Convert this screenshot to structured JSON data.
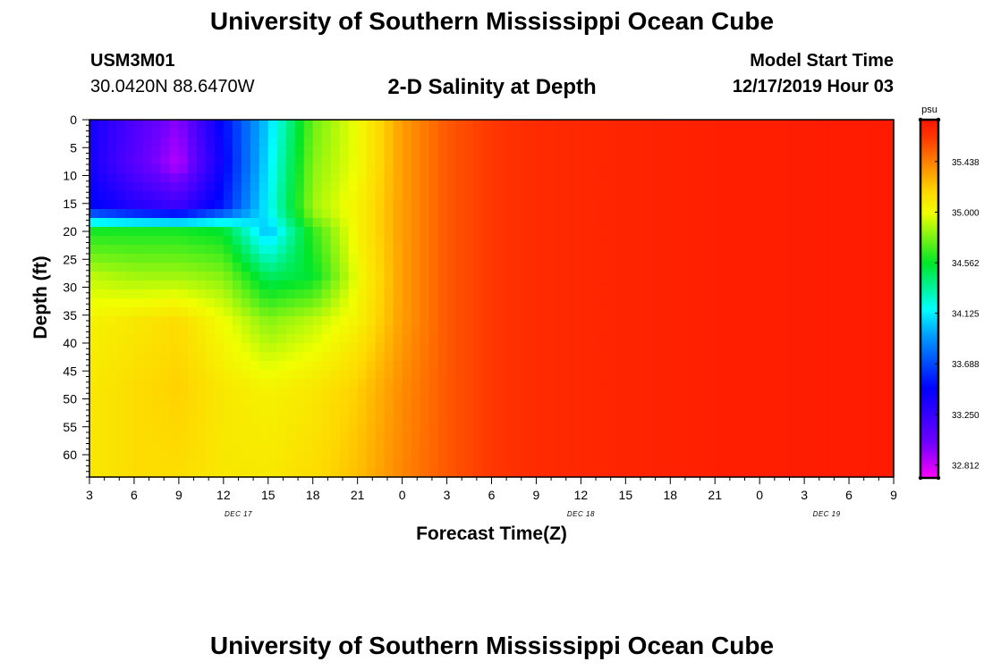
{
  "header": {
    "title_top": "University of Southern Mississippi Ocean Cube",
    "title_bottom": "University of Southern Mississippi Ocean Cube",
    "station_id": "USM3M01",
    "station_coords": "30.0420N 88.6470W",
    "plot_title": "2-D Salinity at Depth",
    "start_label": "Model Start Time",
    "start_value": "12/17/2019 Hour 03"
  },
  "chart_data": {
    "type": "heatmap",
    "title": "2-D Salinity at Depth",
    "xlabel": "Forecast Time(Z)",
    "ylabel": "Depth (ft)",
    "x_tick_labels": [
      "3",
      "6",
      "9",
      "12",
      "15",
      "18",
      "21",
      "0",
      "3",
      "6",
      "9",
      "12",
      "15",
      "18",
      "21",
      "0",
      "3",
      "6",
      "9"
    ],
    "x_tick_hours": [
      0,
      3,
      6,
      9,
      12,
      15,
      18,
      21,
      24,
      27,
      30,
      33,
      36,
      39,
      42,
      45,
      48,
      51,
      54
    ],
    "x_range_hours": [
      0,
      54
    ],
    "date_labels": [
      {
        "text": "DEC 17",
        "hour": 10
      },
      {
        "text": "DEC 18",
        "hour": 33
      },
      {
        "text": "DEC 19",
        "hour": 49.5
      }
    ],
    "y_ticks": [
      0,
      5,
      10,
      15,
      20,
      25,
      30,
      35,
      40,
      45,
      50,
      55,
      60
    ],
    "ylim": [
      0,
      64
    ],
    "y_inverted": true,
    "colorbar": {
      "unit": "psu",
      "ticks": [
        "35.438",
        "35.000",
        "34.562",
        "34.125",
        "33.688",
        "33.250",
        "32.812"
      ],
      "tick_values": [
        35.438,
        35.0,
        34.562,
        34.125,
        33.688,
        33.25,
        32.812
      ],
      "range": [
        32.7,
        35.8
      ]
    },
    "grid_hours": [
      0,
      3,
      6,
      9,
      12,
      15,
      18,
      21,
      24,
      27,
      30,
      36,
      42,
      48,
      54
    ],
    "grid_depths": [
      0,
      8,
      16,
      20,
      28,
      36,
      48,
      64
    ],
    "grid_values": [
      [
        33.4,
        33.15,
        32.95,
        33.5,
        34.05,
        34.75,
        35.0,
        35.35,
        35.55,
        35.65,
        35.7,
        35.73,
        35.75,
        35.76,
        35.77
      ],
      [
        33.4,
        33.1,
        32.85,
        33.45,
        34.1,
        34.8,
        35.0,
        35.35,
        35.55,
        35.65,
        35.7,
        35.73,
        35.75,
        35.76,
        35.77
      ],
      [
        33.5,
        33.35,
        33.25,
        33.55,
        34.15,
        34.85,
        35.05,
        35.35,
        35.55,
        35.65,
        35.7,
        35.73,
        35.75,
        35.76,
        35.77
      ],
      [
        34.6,
        34.6,
        34.6,
        34.55,
        34.0,
        34.65,
        35.05,
        35.35,
        35.55,
        35.65,
        35.7,
        35.73,
        35.75,
        35.76,
        35.77
      ],
      [
        34.9,
        34.85,
        34.85,
        34.8,
        34.45,
        34.55,
        35.0,
        35.35,
        35.55,
        35.65,
        35.7,
        35.73,
        35.75,
        35.76,
        35.77
      ],
      [
        35.05,
        35.1,
        35.15,
        35.0,
        34.8,
        34.9,
        35.05,
        35.35,
        35.55,
        35.65,
        35.7,
        35.73,
        35.75,
        35.76,
        35.77
      ],
      [
        35.1,
        35.15,
        35.2,
        35.1,
        35.05,
        35.1,
        35.2,
        35.4,
        35.55,
        35.65,
        35.7,
        35.73,
        35.75,
        35.76,
        35.77
      ],
      [
        35.1,
        35.15,
        35.15,
        35.1,
        35.1,
        35.15,
        35.25,
        35.42,
        35.55,
        35.65,
        35.7,
        35.73,
        35.75,
        35.76,
        35.77
      ]
    ]
  }
}
